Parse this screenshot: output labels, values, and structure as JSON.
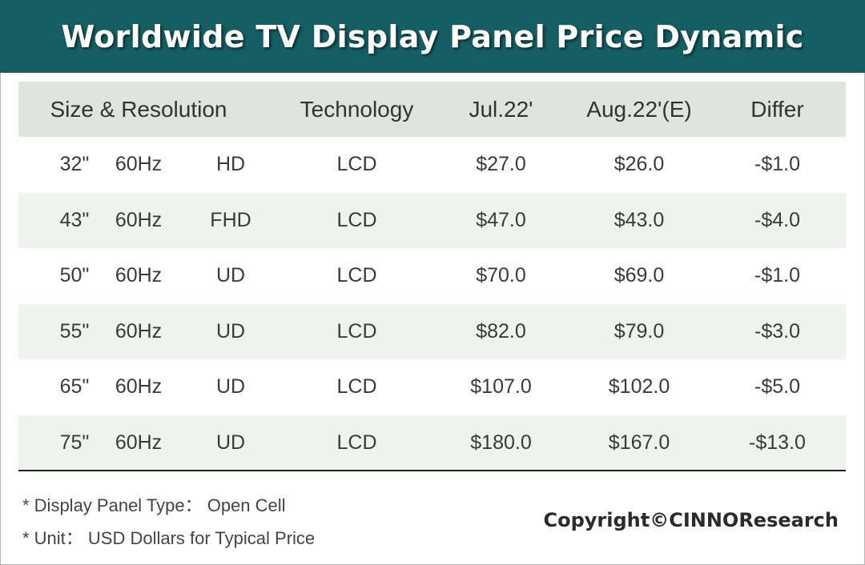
{
  "title": "Worldwide TV Display Panel Price Dynamic",
  "chart_data": {
    "type": "table",
    "title": "Worldwide TV Display Panel Price Dynamic",
    "headers": [
      "Size & Resolution",
      "Technology",
      "Jul.22'",
      "Aug.22'(E)",
      "Differ"
    ],
    "rows": [
      {
        "size": "32\"",
        "refresh": "60Hz",
        "resolution": "HD",
        "technology": "LCD",
        "jul": "$27.0",
        "aug": "$26.0",
        "differ": "-$1.0"
      },
      {
        "size": "43\"",
        "refresh": "60Hz",
        "resolution": "FHD",
        "technology": "LCD",
        "jul": "$47.0",
        "aug": "$43.0",
        "differ": "-$4.0"
      },
      {
        "size": "50\"",
        "refresh": "60Hz",
        "resolution": "UD",
        "technology": "LCD",
        "jul": "$70.0",
        "aug": "$69.0",
        "differ": "-$1.0"
      },
      {
        "size": "55\"",
        "refresh": "60Hz",
        "resolution": "UD",
        "technology": "LCD",
        "jul": "$82.0",
        "aug": "$79.0",
        "differ": "-$3.0"
      },
      {
        "size": "65\"",
        "refresh": "60Hz",
        "resolution": "UD",
        "technology": "LCD",
        "jul": "$107.0",
        "aug": "$102.0",
        "differ": "-$5.0"
      },
      {
        "size": "75\"",
        "refresh": "60Hz",
        "resolution": "UD",
        "technology": "LCD",
        "jul": "$180.0",
        "aug": "$167.0",
        "differ": "-$13.0"
      }
    ]
  },
  "notes": {
    "panel_type": "* Display Panel Type： Open Cell",
    "unit": "* Unit： USD Dollars for Typical Price"
  },
  "copyright": "Copyright©CINNOResearch",
  "colors": {
    "title_bg": "#155e63",
    "header_bg": "#dde5dd",
    "alt_row_bg": "#eef3ee"
  }
}
